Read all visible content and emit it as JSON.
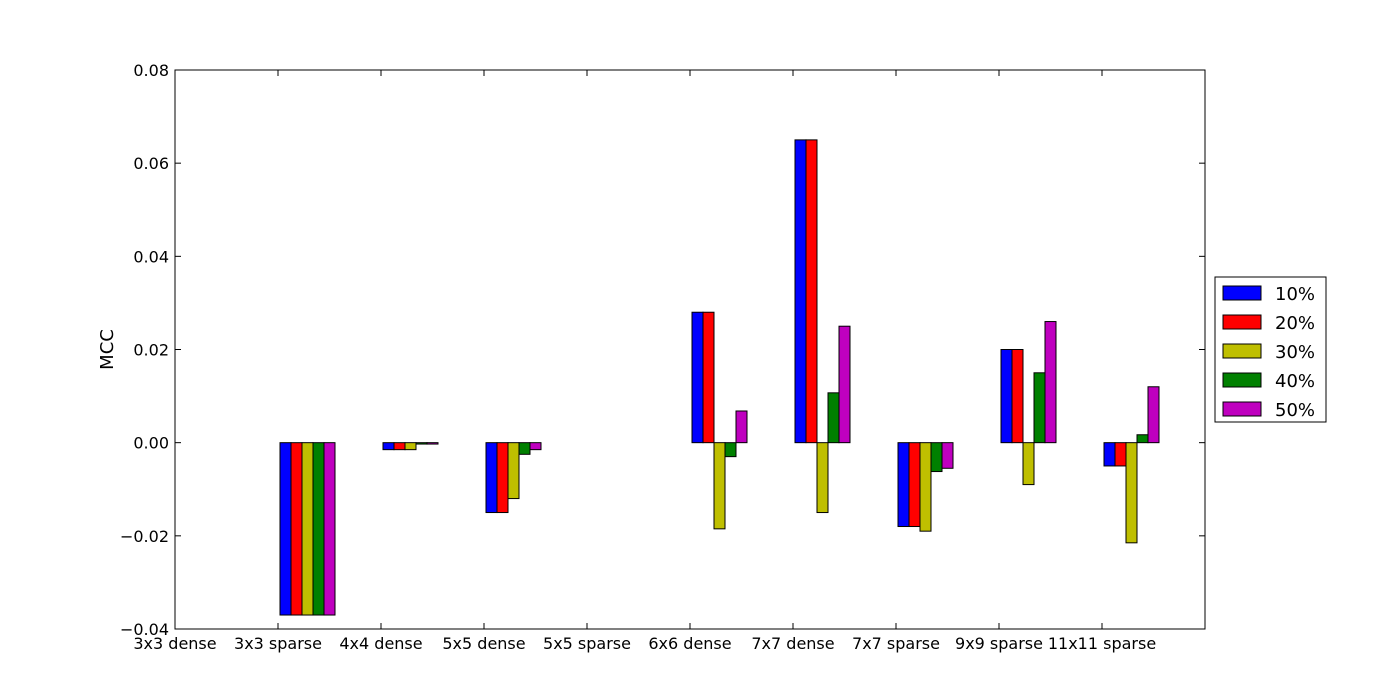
{
  "chart_data": {
    "type": "bar",
    "title": "",
    "xlabel": "",
    "ylabel": "MCC",
    "ylim": [
      -0.04,
      0.08
    ],
    "yticks": [
      -0.04,
      -0.02,
      0.0,
      0.02,
      0.04,
      0.06,
      0.08
    ],
    "ytick_labels": [
      "−0.04",
      "−0.02",
      "0.00",
      "0.02",
      "0.04",
      "0.06",
      "0.08"
    ],
    "grid": false,
    "legend_position": "right",
    "categories": [
      "3x3 dense",
      "3x3 sparse",
      "4x4 dense",
      "5x5 dense",
      "5x5 sparse",
      "6x6 dense",
      "7x7 dense",
      "7x7 sparse",
      "9x9 sparse",
      "11x11 sparse"
    ],
    "series": [
      {
        "name": "10%",
        "color": "#0000ff",
        "values": [
          0.0,
          -0.037,
          -0.0015,
          -0.015,
          0.0,
          0.028,
          0.065,
          -0.018,
          0.02,
          -0.005
        ]
      },
      {
        "name": "20%",
        "color": "#ff0000",
        "values": [
          0.0,
          -0.037,
          -0.0015,
          -0.015,
          0.0,
          0.028,
          0.065,
          -0.018,
          0.02,
          -0.005
        ]
      },
      {
        "name": "30%",
        "color": "#bfbf00",
        "values": [
          0.0,
          -0.037,
          -0.0015,
          -0.012,
          0.0,
          -0.0185,
          -0.015,
          -0.019,
          -0.009,
          -0.0215
        ]
      },
      {
        "name": "40%",
        "color": "#008000",
        "values": [
          0.0,
          -0.037,
          -0.0003,
          -0.0025,
          0.0,
          -0.003,
          0.0107,
          -0.0062,
          0.015,
          0.0017
        ]
      },
      {
        "name": "50%",
        "color": "#bf00bf",
        "values": [
          0.0,
          -0.037,
          -0.0003,
          -0.0015,
          0.0,
          0.0068,
          0.025,
          -0.0055,
          0.026,
          0.012
        ]
      }
    ]
  }
}
